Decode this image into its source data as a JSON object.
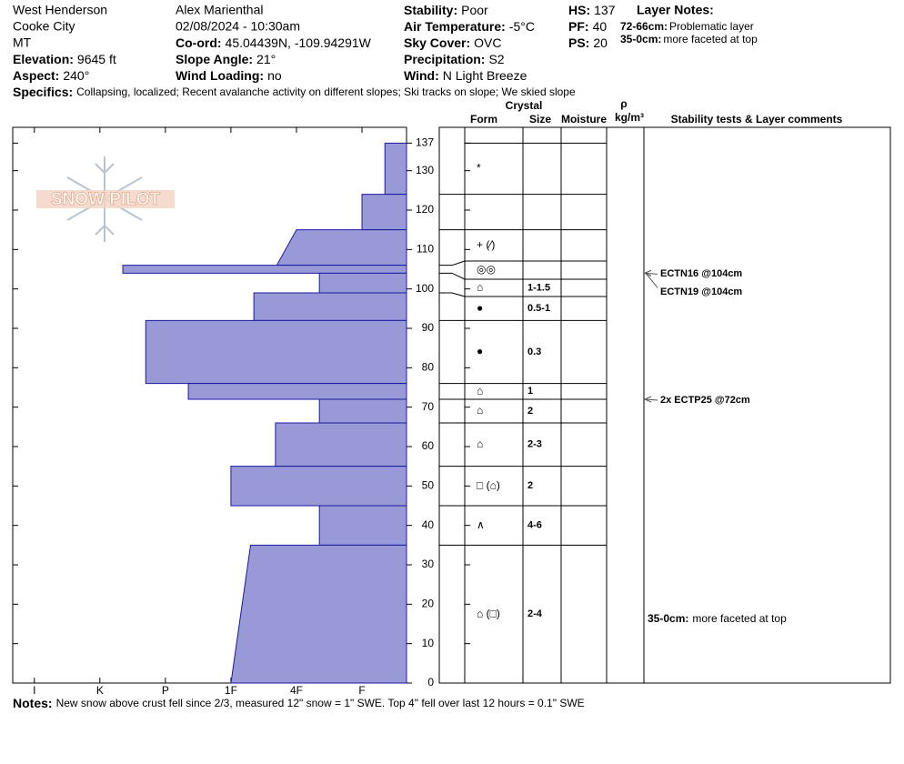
{
  "header": {
    "site": "West Henderson",
    "city": "Cooke City",
    "state": "MT",
    "observer": "Alex Marienthal",
    "datetime": "02/08/2024 - 10:30am",
    "fields": [
      {
        "label": "Elevation:",
        "value": "9645 ft"
      },
      {
        "label": "Aspect:",
        "value": "240°"
      },
      {
        "label": "Co-ord:",
        "value": "45.04439N, -109.94291W"
      },
      {
        "label": "Slope Angle:",
        "value": "21°"
      },
      {
        "label": "Wind Loading:",
        "value": "no"
      },
      {
        "label": "Stability:",
        "value": "Poor"
      },
      {
        "label": "Air Temperature:",
        "value": "-5°C"
      },
      {
        "label": "Sky Cover:",
        "value": "OVC"
      },
      {
        "label": "Precipitation:",
        "value": "S2"
      },
      {
        "label": "Wind:",
        "value": "N Light Breeze"
      },
      {
        "label": "HS:",
        "value": 137
      },
      {
        "label": "PF:",
        "value": 40
      },
      {
        "label": "PS:",
        "value": 20
      }
    ],
    "layer_notes": {
      "title": "Layer Notes:",
      "items": [
        {
          "range": "72-66cm:",
          "text": "Problematic layer"
        },
        {
          "range": "35-0cm:",
          "text": "more faceted at top"
        }
      ]
    },
    "specifics": {
      "label": "Specifics:",
      "text": "Collapsing, localized; Recent avalanche activity on different slopes; Ski tracks on slope; We skied slope"
    }
  },
  "logo": "SNOW PILOT",
  "chart_data": {
    "type": "snow-profile",
    "color": "#9999d8",
    "edge_color": "#1a1aa0",
    "ylim": [
      0,
      141
    ],
    "yticks": [
      0,
      10,
      20,
      30,
      40,
      50,
      60,
      70,
      80,
      90,
      100,
      110,
      120,
      130,
      137
    ],
    "xlim": [
      6.33,
      0.32
    ],
    "xticks": [
      {
        "value": 6,
        "label": "I"
      },
      {
        "value": 5,
        "label": "K"
      },
      {
        "value": 4,
        "label": "P"
      },
      {
        "value": 3,
        "label": "1F"
      },
      {
        "value": 2,
        "label": "4F"
      },
      {
        "value": 1,
        "label": "F"
      }
    ],
    "columns": {
      "crystal": "Crystal",
      "form": "Form",
      "size": "Size",
      "moisture": "Moisture",
      "density_symbol": "ρ",
      "density_unit": "kg/m³",
      "comments": "Stability tests & Layer comments"
    },
    "heights": [
      137,
      124,
      115,
      106,
      104,
      99,
      92,
      76,
      72,
      66,
      55,
      45,
      35,
      0
    ],
    "layers": [
      {
        "hardness": 0.65,
        "form": "*"
      },
      {
        "hardness": 1
      },
      {
        "hardness": 2.0,
        "hardness_bottom": 2.3,
        "form": "+ (⁄)"
      },
      {
        "hardness": 4.65,
        "form": "◎◎"
      },
      {
        "hardness": 1.65,
        "form": "⌂",
        "size": "1-1.5"
      },
      {
        "hardness": 2.65,
        "form": "●",
        "size": "0.5-1"
      },
      {
        "hardness": 4.3,
        "form": "●",
        "size": "0.3"
      },
      {
        "hardness": 3.65,
        "form": "⌂",
        "size": "1"
      },
      {
        "hardness": 1.65,
        "form": "⌂",
        "size": "2"
      },
      {
        "hardness": 2.32,
        "form": "⌂",
        "size": "2-3"
      },
      {
        "hardness": 3,
        "form": "□ (⌂)",
        "size": "2"
      },
      {
        "hardness": 1.65,
        "form": "∧",
        "size": "4-6"
      },
      {
        "hardness": 2.7,
        "hardness_bottom": 3,
        "form": "⌂ (□)",
        "size": "2-4",
        "comment": {
          "range": "35-0cm:",
          "text": "more faceted at top"
        }
      }
    ],
    "tests": [
      {
        "label": "ECTN16 @104cm",
        "height": 104
      },
      {
        "label": "ECTN19 @104cm",
        "height": 104
      },
      {
        "label": "2x ECTP25 @72cm",
        "height": 72
      }
    ]
  },
  "notes": {
    "label": "Notes:",
    "text": "New snow above crust fell since 2/3, measured 12\" snow = 1\" SWE. Top 4\" fell over last 12 hours = 0.1\" SWE"
  }
}
